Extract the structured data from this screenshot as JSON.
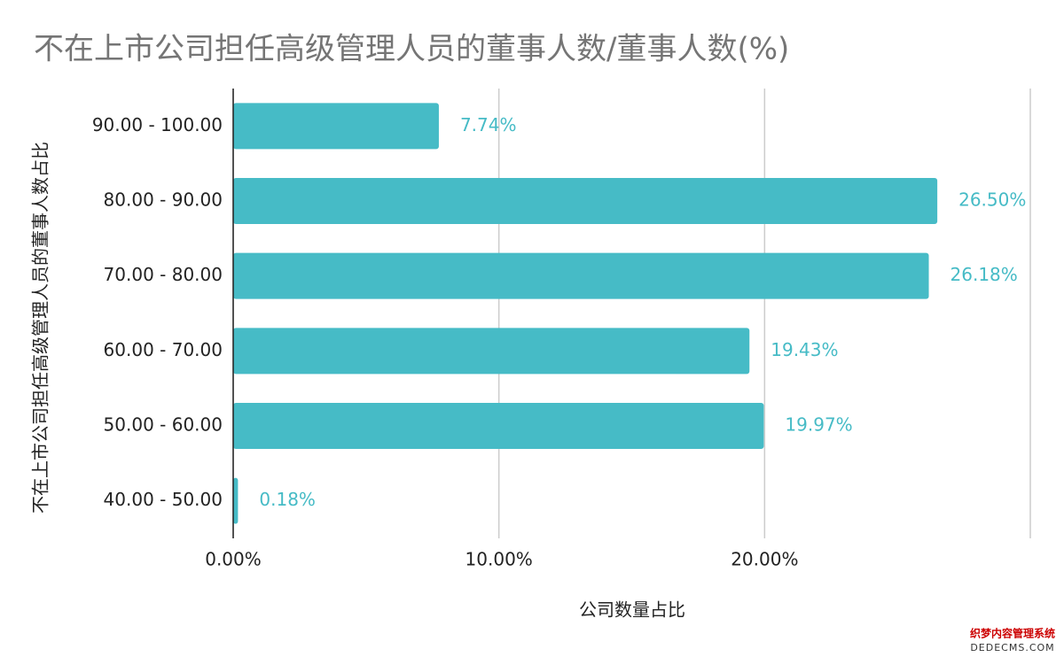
{
  "chart_data": {
    "type": "bar",
    "orientation": "horizontal",
    "title": "不在上市公司担任高级管理人员的董事人数/董事人数(%)",
    "x_label": "公司数量占比",
    "y_label": "不在上市公司担任高级管理人员的董事人数占比",
    "categories": [
      "90.00 - 100.00",
      "80.00 - 90.00",
      "70.00 - 80.00",
      "60.00 - 70.00",
      "50.00 - 60.00",
      "40.00 - 50.00"
    ],
    "values": [
      7.74,
      26.5,
      26.18,
      19.43,
      19.97,
      0.18
    ],
    "value_labels": [
      "7.74%",
      "26.50%",
      "26.18%",
      "19.43%",
      "19.97%",
      "0.18%"
    ],
    "color": "#46bbc6",
    "xlim": [
      0,
      30
    ],
    "xticks": [
      {
        "value": 0,
        "label": "0.00%"
      },
      {
        "value": 10,
        "label": "10.00%"
      },
      {
        "value": 20,
        "label": "20.00%"
      }
    ],
    "grid": true,
    "watermark": [
      "织梦内容管理系统",
      "DEDECMS.COM"
    ]
  }
}
